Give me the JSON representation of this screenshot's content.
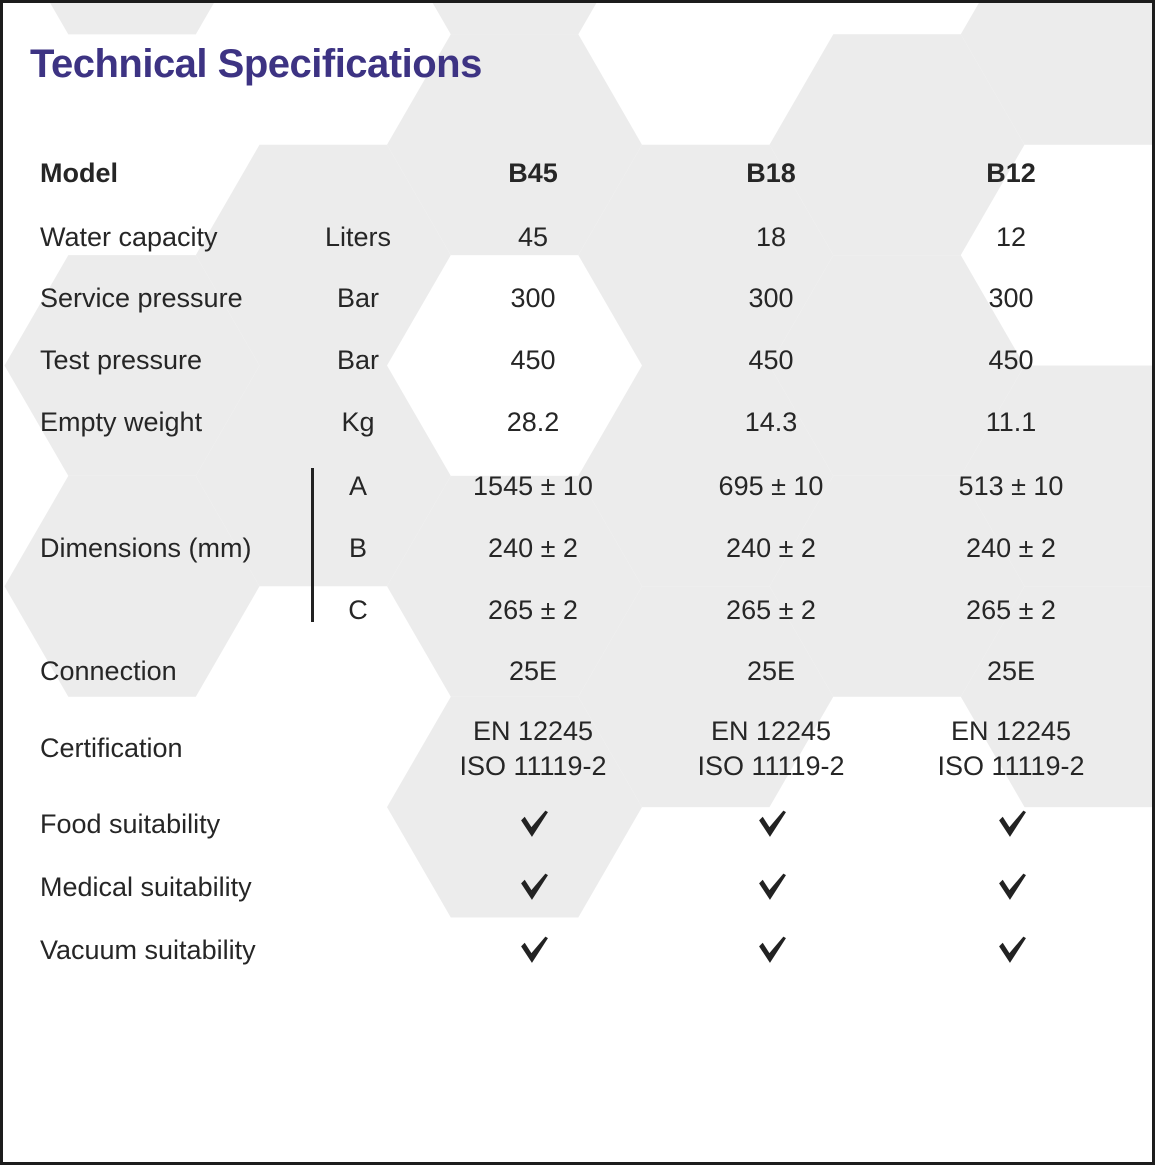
{
  "title": "Technical Specifications",
  "colors": {
    "accent_purple": "#3d3383",
    "hex_gray": "#ececec",
    "text_dark": "#262626",
    "checkmark_dark": "#222222",
    "border_dark": "#1c1c1c"
  },
  "table": {
    "header": {
      "label": "Model",
      "models": [
        "B45",
        "B18",
        "B12"
      ]
    },
    "rows": [
      {
        "label": "Water capacity",
        "unit": "Liters",
        "values": [
          "45",
          "18",
          "12"
        ]
      },
      {
        "label": "Service pressure",
        "unit": "Bar",
        "values": [
          "300",
          "300",
          "300"
        ]
      },
      {
        "label": "Test pressure",
        "unit": "Bar",
        "values": [
          "450",
          "450",
          "450"
        ]
      },
      {
        "label": "Empty weight",
        "unit": "Kg",
        "values": [
          "28.2",
          "14.3",
          "11.1"
        ]
      }
    ],
    "dimensions": {
      "label": "Dimensions (mm)",
      "sub_rows": [
        {
          "key": "A",
          "values": [
            "1545 ± 10",
            "695 ± 10",
            "513 ± 10"
          ]
        },
        {
          "key": "B",
          "values": [
            "240 ± 2",
            "240 ± 2",
            "240 ± 2"
          ]
        },
        {
          "key": "C",
          "values": [
            "265 ± 2",
            "265 ± 2",
            "265 ± 2"
          ]
        }
      ]
    },
    "connection": {
      "label": "Connection",
      "values": [
        "25E",
        "25E",
        "25E"
      ]
    },
    "certification": {
      "label": "Certification",
      "values": [
        [
          "EN 12245",
          "ISO 11119-2"
        ],
        [
          "EN 12245",
          "ISO 11119-2"
        ],
        [
          "EN 12245",
          "ISO 11119-2"
        ]
      ]
    },
    "suitability": [
      {
        "label": "Food suitability",
        "values": [
          true,
          true,
          true
        ]
      },
      {
        "label": "Medical suitability",
        "values": [
          true,
          true,
          true
        ]
      },
      {
        "label": "Vacuum suitability",
        "values": [
          true,
          true,
          true
        ]
      }
    ]
  }
}
